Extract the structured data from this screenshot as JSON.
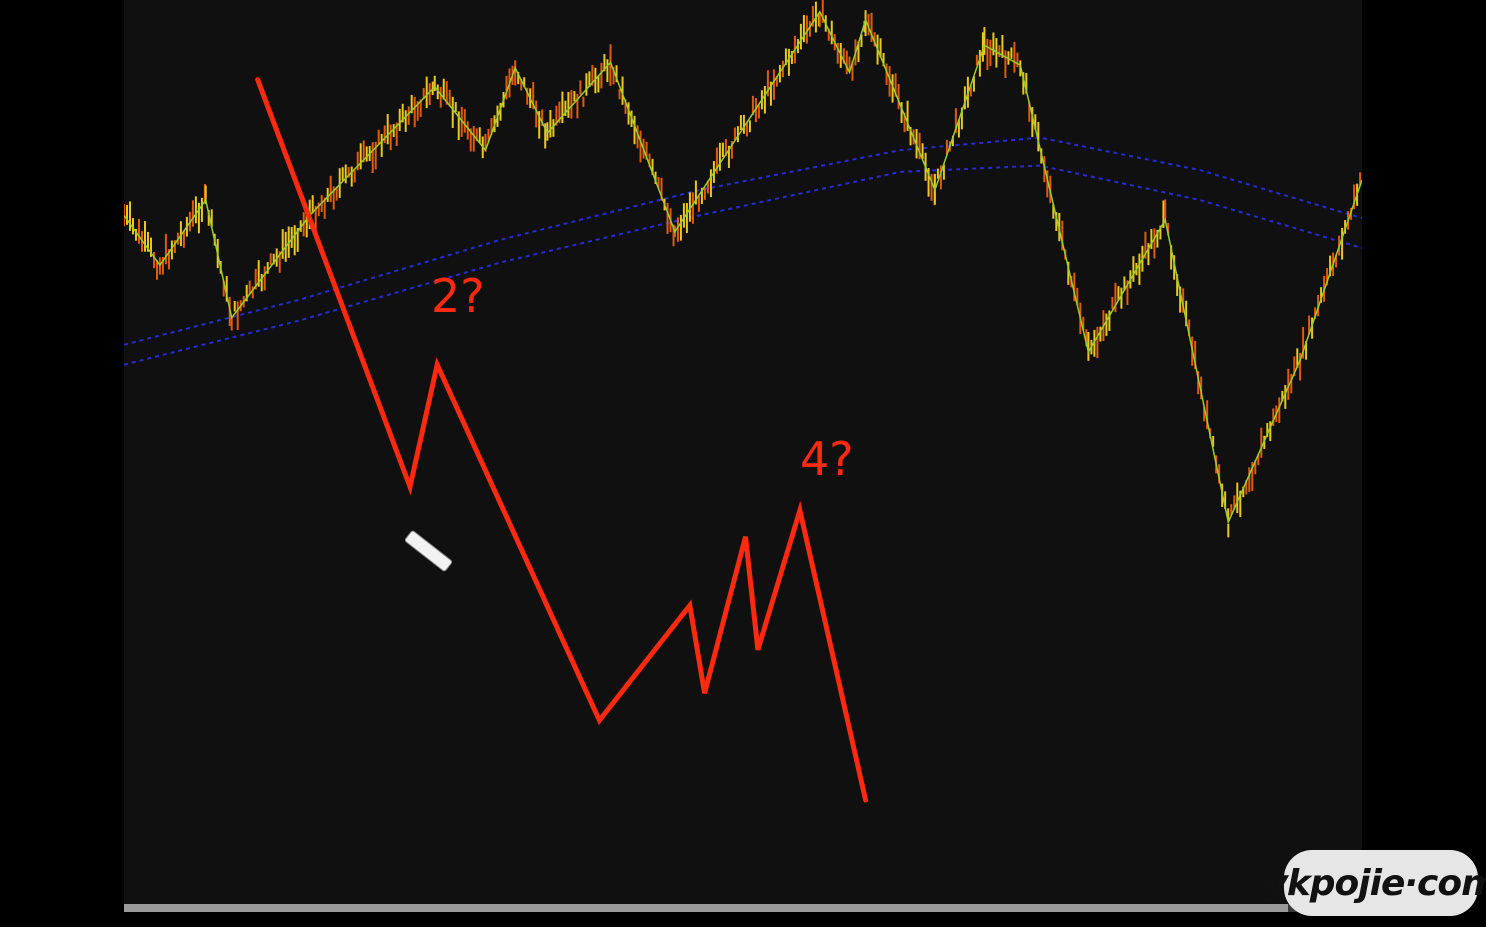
{
  "chart_data": {
    "type": "line",
    "title": "",
    "xlabel": "",
    "ylabel": "",
    "xlim": [
      0,
      100
    ],
    "ylim": [
      0,
      100
    ],
    "grid": false,
    "background": "#101010",
    "series": [
      {
        "role": "zigzag-pivots",
        "color": "#9acd32",
        "x": [
          0,
          2.9,
          6.6,
          8.7,
          15.0,
          25.1,
          29.2,
          31.6,
          34.2,
          39.3,
          44.5,
          56.2,
          58.6,
          59.9,
          65.5,
          69.5,
          72.4,
          77.9,
          84.1,
          89.2,
          95.0,
          100
        ],
        "y": [
          76.2,
          70.7,
          77.9,
          64.9,
          76.2,
          90.4,
          83.4,
          92.5,
          85.3,
          93.1,
          74.4,
          98.7,
          92.0,
          97.8,
          79.0,
          95.0,
          92.8,
          61.1,
          75.7,
          42.3,
          60.2,
          80.1
        ]
      },
      {
        "role": "moving-average-upper",
        "color": "#2a2ad0",
        "style": "dashed",
        "x": [
          0,
          14.2,
          30.4,
          46.5,
          62.7,
          74.0,
          86.9,
          100
        ],
        "y": [
          61.9,
          66.9,
          73.5,
          79.0,
          83.4,
          84.8,
          81.2,
          75.9
        ]
      },
      {
        "role": "moving-average-lower",
        "color": "#2a2ad0",
        "style": "dashed",
        "x": [
          0,
          14.2,
          30.4,
          46.5,
          62.7,
          74.0,
          86.9,
          100
        ],
        "y": [
          59.7,
          64.6,
          71.0,
          76.2,
          81.0,
          81.7,
          77.9,
          72.6
        ]
      }
    ],
    "price_bar_colors": {
      "up": "#e8c820",
      "down": "#e05a10"
    },
    "annotation": {
      "color": "#ff2a10",
      "x": [
        10.8,
        23.1,
        25.3,
        38.4,
        45.7,
        46.9,
        50.2,
        51.2,
        54.6,
        59.9
      ],
      "y": [
        91.2,
        46.2,
        59.7,
        20.4,
        33.1,
        23.4,
        40.7,
        28.2,
        43.6,
        11.6
      ],
      "labels": [
        {
          "text": "2?",
          "x": 24.8,
          "y": 66.5
        },
        {
          "text": "4?",
          "x": 54.6,
          "y": 48.5
        }
      ]
    }
  },
  "video": {
    "progress_percent": 94
  },
  "watermark": "ykpojie·com",
  "cursor": "pen-icon"
}
